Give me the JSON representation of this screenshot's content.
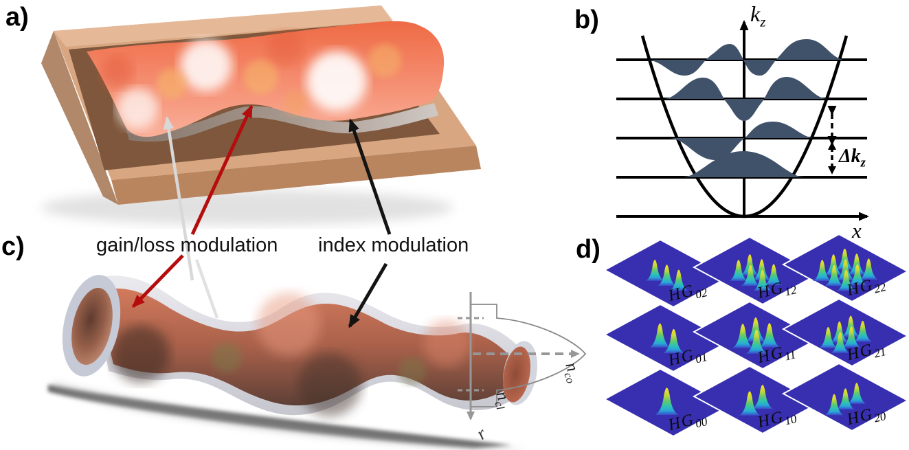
{
  "panel_labels": {
    "a": "a)",
    "b": "b)",
    "c": "c)",
    "d": "d)"
  },
  "annotations": {
    "gain_loss": "gain/loss modulation",
    "index_mod": "index modulation"
  },
  "panel_b": {
    "y_axis_label": {
      "base": "k",
      "sub": "z"
    },
    "x_axis_label": "x",
    "level_spacing_label": {
      "delta": "Δ",
      "base": "k",
      "sub": "z"
    },
    "num_levels": 5,
    "modes_shown": [
      0,
      1,
      2,
      3
    ]
  },
  "panel_c": {
    "core_index_label": {
      "base": "n",
      "sub": "co"
    },
    "cladding_index_label": {
      "base": "n",
      "sub": "cl"
    },
    "radial_axis_label": "r"
  },
  "panel_d": {
    "mode_prefix": "HG",
    "tiles": [
      {
        "sub": "02",
        "row": 0,
        "col": 0,
        "peaks": [
          1,
          3
        ]
      },
      {
        "sub": "12",
        "row": 0,
        "col": 1,
        "peaks": [
          2,
          3
        ]
      },
      {
        "sub": "22",
        "row": 0,
        "col": 2,
        "peaks": [
          3,
          3
        ]
      },
      {
        "sub": "01",
        "row": 1,
        "col": 0,
        "peaks": [
          1,
          2
        ]
      },
      {
        "sub": "11",
        "row": 1,
        "col": 1,
        "peaks": [
          2,
          2
        ]
      },
      {
        "sub": "21",
        "row": 1,
        "col": 2,
        "peaks": [
          3,
          2
        ]
      },
      {
        "sub": "00",
        "row": 2,
        "col": 0,
        "peaks": [
          1,
          1
        ]
      },
      {
        "sub": "10",
        "row": 2,
        "col": 1,
        "peaks": [
          2,
          1
        ]
      },
      {
        "sub": "20",
        "row": 2,
        "col": 2,
        "peaks": [
          3,
          1
        ]
      }
    ]
  },
  "colors": {
    "arrow_red": "#b50d0d",
    "arrow_black": "#141414",
    "arrow_white": "#d8d8d8",
    "mode_fill": "#40526a",
    "tile_bg": "#382fb0",
    "peak_tip": "#f7df2e",
    "peak_base": "#2aa7d8",
    "profile_gray": "#979797"
  }
}
